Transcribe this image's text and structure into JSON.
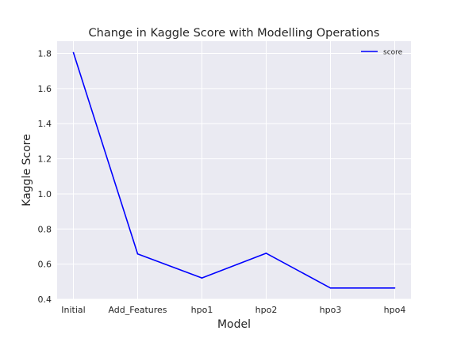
{
  "chart_data": {
    "type": "line",
    "title": "Change in Kaggle Score with Modelling Operations",
    "xlabel": "Model",
    "ylabel": "Kaggle Score",
    "categories": [
      "Initial",
      "Add_Features",
      "hpo1",
      "hpo2",
      "hpo3",
      "hpo4"
    ],
    "series": [
      {
        "name": "score",
        "values": [
          1.805,
          0.658,
          0.521,
          0.662,
          0.464,
          0.464
        ],
        "color": "#0000ff"
      }
    ],
    "ylim": [
      0.4,
      1.87
    ],
    "yticks": [
      0.4,
      0.6,
      0.8,
      1.0,
      1.2,
      1.4,
      1.6,
      1.8
    ],
    "grid": true,
    "legend_position": "top-right",
    "colors": {
      "plot_background": "#eaeaf2",
      "grid": "#ffffff"
    }
  }
}
